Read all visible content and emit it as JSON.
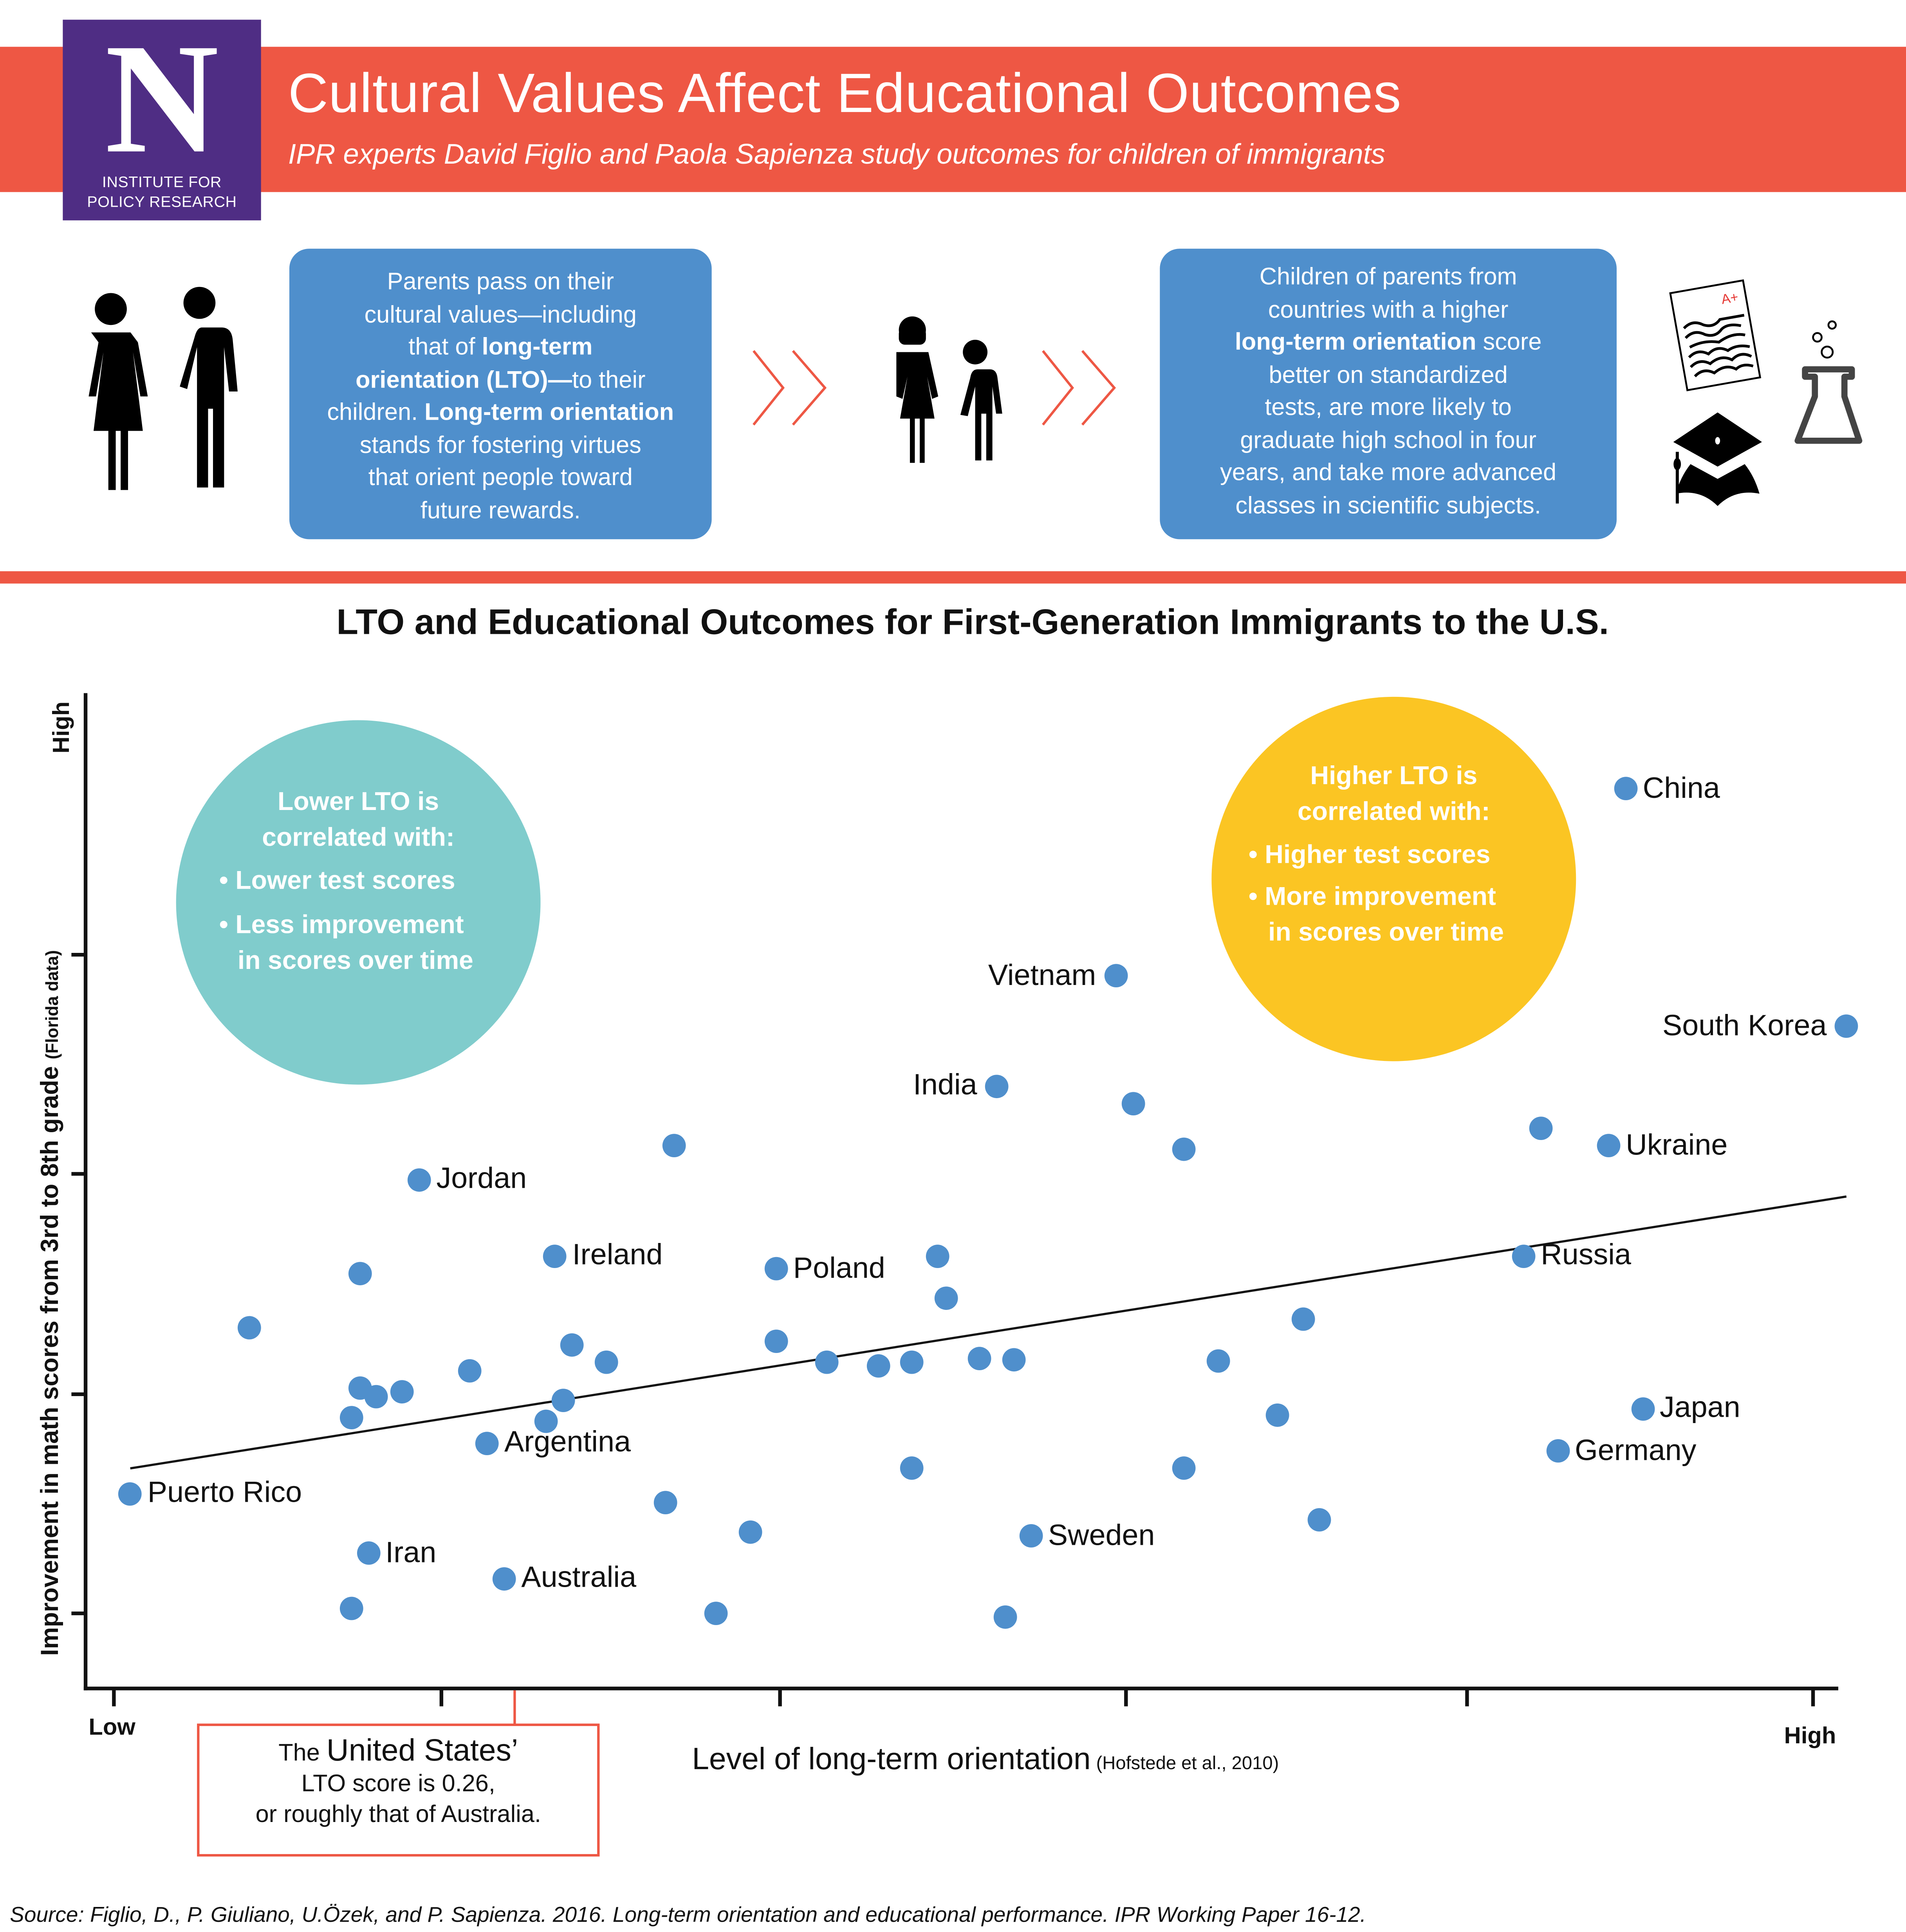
{
  "header": {
    "logo_letter": "N",
    "logo_sub_line1": "INSTITUTE FOR",
    "logo_sub_line2": "POLICY RESEARCH",
    "title": "Cultural Values Affect Educational Outcomes",
    "subtitle": "IPR experts David Figlio and Paola Sapienza study outcomes for children of immigrants",
    "colors": {
      "banner": "#ee5744",
      "logo_bg": "#4f2d84",
      "box_blue": "#4f8fcc",
      "teal": "#80cccc",
      "yellow": "#fbc523"
    }
  },
  "flow": {
    "icons": [
      "parents-icon",
      "chevron-right-double-icon",
      "children-icon",
      "chevron-right-double-icon",
      "test-paper-icon",
      "flask-icon",
      "graduation-cap-icon"
    ],
    "box1": {
      "l1": "Parents pass on their",
      "l2": "cultural values—including",
      "l3a": "that of ",
      "l3b": "long-term",
      "l4a": "orientation (LTO)—",
      "l4b": "to their",
      "l5a": "children. ",
      "l5b": "Long-term orientation",
      "l6": "stands for fostering virtues",
      "l7": "that orient people toward",
      "l8": "future rewards."
    },
    "box2": {
      "l1": "Children of parents from",
      "l2": "countries with a higher",
      "l3a": "long-term orientation",
      "l3b": " score",
      "l4": "better on standardized",
      "l5": "tests, are more likely to",
      "l6": "graduate high school in four",
      "l7": "years, and take more advanced",
      "l8": "classes in scientific subjects."
    },
    "test_grade": "A+"
  },
  "chart_data": {
    "type": "scatter",
    "title": "LTO and Educational Outcomes for First-Generation Immigrants to the U.S.",
    "xlabel": "Level of long-term orientation",
    "xlabel_note": "(Hofstede et al., 2010)",
    "ylabel": "Improvement in math scores from 3rd to 8th grade",
    "ylabel_note": "(Florida data)",
    "x_tick_labels": {
      "low": "Low",
      "high": "High"
    },
    "y_tick_labels": {
      "high": "High"
    },
    "xlim": [
      0,
      1
    ],
    "ylim": [
      0,
      1
    ],
    "trendline": {
      "x0": 0.01,
      "y0": 0.17,
      "x1": 1.02,
      "y1": 0.49
    },
    "points": [
      {
        "label": "China",
        "x": 0.89,
        "y": 0.97
      },
      {
        "label": "South Korea",
        "x": 1.02,
        "y": 0.69
      },
      {
        "label": "Vietnam",
        "x": 0.59,
        "y": 0.75
      },
      {
        "label": "India",
        "x": 0.52,
        "y": 0.62
      },
      {
        "label": "Ukraine",
        "x": 0.88,
        "y": 0.55
      },
      {
        "label": "Russia",
        "x": 0.83,
        "y": 0.42
      },
      {
        "label": "Jordan",
        "x": 0.18,
        "y": 0.51
      },
      {
        "label": "Ireland",
        "x": 0.26,
        "y": 0.42
      },
      {
        "label": "Poland",
        "x": 0.39,
        "y": 0.405
      },
      {
        "label": "Japan",
        "x": 0.9,
        "y": 0.24
      },
      {
        "label": "Germany",
        "x": 0.85,
        "y": 0.19
      },
      {
        "label": "Argentina",
        "x": 0.22,
        "y": 0.2
      },
      {
        "label": "Puerto Rico",
        "x": 0.01,
        "y": 0.14
      },
      {
        "label": "Sweden",
        "x": 0.54,
        "y": 0.09
      },
      {
        "label": "Iran",
        "x": 0.15,
        "y": 0.07
      },
      {
        "label": "Australia",
        "x": 0.23,
        "y": 0.04
      },
      {
        "label": "",
        "x": 0.33,
        "y": 0.55
      },
      {
        "label": "",
        "x": 0.6,
        "y": 0.6
      },
      {
        "label": "",
        "x": 0.63,
        "y": 0.545
      },
      {
        "label": "",
        "x": 0.84,
        "y": 0.57
      },
      {
        "label": "",
        "x": 0.145,
        "y": 0.4
      },
      {
        "label": "",
        "x": 0.08,
        "y": 0.335
      },
      {
        "label": "",
        "x": 0.485,
        "y": 0.42
      },
      {
        "label": "",
        "x": 0.49,
        "y": 0.37
      },
      {
        "label": "",
        "x": 0.7,
        "y": 0.345
      },
      {
        "label": "",
        "x": 0.27,
        "y": 0.315
      },
      {
        "label": "",
        "x": 0.39,
        "y": 0.32
      },
      {
        "label": "",
        "x": 0.29,
        "y": 0.295
      },
      {
        "label": "",
        "x": 0.42,
        "y": 0.295
      },
      {
        "label": "",
        "x": 0.45,
        "y": 0.29
      },
      {
        "label": "",
        "x": 0.47,
        "y": 0.295
      },
      {
        "label": "",
        "x": 0.51,
        "y": 0.3
      },
      {
        "label": "",
        "x": 0.53,
        "y": 0.298
      },
      {
        "label": "",
        "x": 0.65,
        "y": 0.296
      },
      {
        "label": "",
        "x": 0.21,
        "y": 0.285
      },
      {
        "label": "",
        "x": 0.145,
        "y": 0.265
      },
      {
        "label": "",
        "x": 0.155,
        "y": 0.255
      },
      {
        "label": "",
        "x": 0.17,
        "y": 0.26
      },
      {
        "label": "",
        "x": 0.265,
        "y": 0.25
      },
      {
        "label": "",
        "x": 0.14,
        "y": 0.23
      },
      {
        "label": "",
        "x": 0.255,
        "y": 0.225
      },
      {
        "label": "",
        "x": 0.685,
        "y": 0.232
      },
      {
        "label": "",
        "x": 0.47,
        "y": 0.17
      },
      {
        "label": "",
        "x": 0.63,
        "y": 0.17
      },
      {
        "label": "",
        "x": 0.325,
        "y": 0.13
      },
      {
        "label": "",
        "x": 0.375,
        "y": 0.095
      },
      {
        "label": "",
        "x": 0.71,
        "y": 0.11
      },
      {
        "label": "",
        "x": 0.14,
        "y": 0.005
      },
      {
        "label": "",
        "x": 0.355,
        "y": 0.0
      },
      {
        "label": "",
        "x": 0.525,
        "y": -0.005
      }
    ]
  },
  "callouts": {
    "lower": {
      "head1": "Lower LTO is",
      "head2": "correlated with:",
      "b1": "• Lower test scores",
      "b2": "• Less improvement",
      "b3": "in scores over time"
    },
    "higher": {
      "head1": "Higher LTO is",
      "head2": "correlated with:",
      "b1": "• Higher test scores",
      "b2": "• More improvement",
      "b3": "in scores over time"
    }
  },
  "us_note": {
    "pre": "The ",
    "big": "United States’",
    "l2": "LTO score is 0.26,",
    "l3": "or roughly that of Australia."
  },
  "source": "Source: Figlio, D., P. Giuliano, U.Özek, and P. Sapienza. 2016. Long-term orientation and educational performance. IPR Working Paper 16-12."
}
